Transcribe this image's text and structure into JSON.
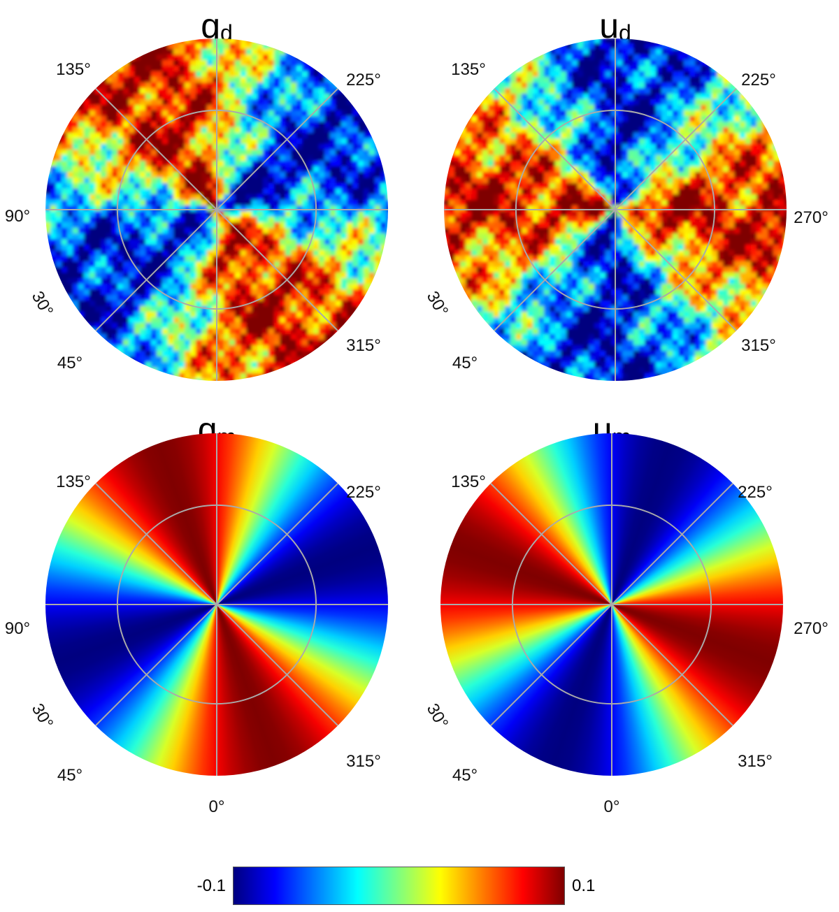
{
  "panels": [
    {
      "title": "q",
      "subscript": "d",
      "labels": [
        "135°",
        "225°",
        "90°",
        "30°",
        "45°",
        "315°"
      ]
    },
    {
      "title": "u",
      "subscript": "d",
      "labels": [
        "135°",
        "225°",
        "270°",
        "30°",
        "45°",
        "315°"
      ]
    },
    {
      "title": "q",
      "subscript": "m",
      "labels": [
        "135°",
        "225°",
        "90°",
        "30°",
        "45°",
        "315°",
        "0°"
      ]
    },
    {
      "title": "u",
      "subscript": "m",
      "labels": [
        "135°",
        "225°",
        "270°",
        "30°",
        "45°",
        "315°",
        "0°"
      ]
    }
  ],
  "colorbar": {
    "lim": [
      -0.1,
      0.1
    ],
    "ticks": [
      -0.1,
      0.1
    ],
    "colors": [
      "#00007f",
      "#0000ff",
      "#007fff",
      "#00ffff",
      "#7fff7f",
      "#ffff00",
      "#ff7f00",
      "#ff0000",
      "#7f0000"
    ]
  }
}
